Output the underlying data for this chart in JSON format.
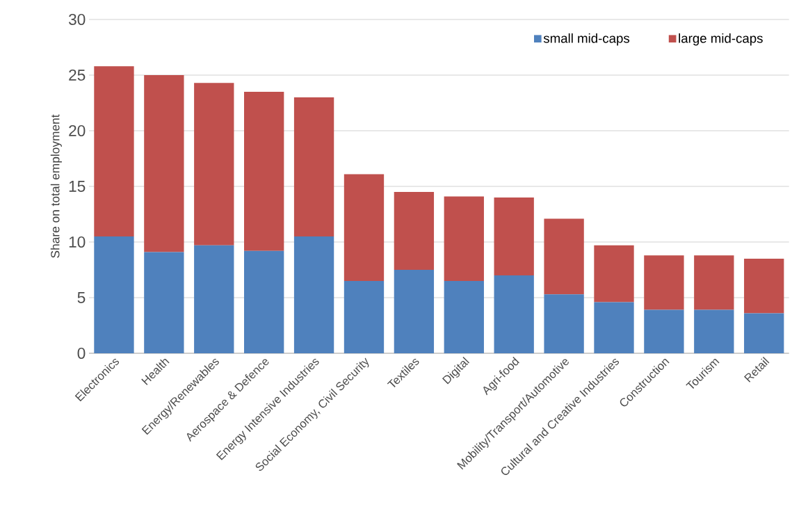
{
  "chart_data": {
    "type": "bar",
    "stacked": true,
    "ylabel": "Share on total employment",
    "categories": [
      "Electronics",
      "Health",
      "Energy/Renewables",
      "Aerospace & Defence",
      "Energy Intensive Industries",
      "Social Economy, Civil Security",
      "Textiles",
      "Digital",
      "Agri-food",
      "Mobility/Transport/Automotive",
      "Cultural and Creative Industries",
      "Construction",
      "Tourism",
      "Retail"
    ],
    "series": [
      {
        "name": "small mid-caps",
        "color": "#4f81bd",
        "values": [
          10.5,
          9.1,
          9.7,
          9.2,
          10.5,
          6.5,
          7.5,
          6.5,
          7.0,
          5.3,
          4.6,
          3.9,
          3.9,
          3.6
        ]
      },
      {
        "name": "large mid-caps",
        "color": "#c0504d",
        "values": [
          15.3,
          15.9,
          14.6,
          14.3,
          12.5,
          9.6,
          7.0,
          7.6,
          7.0,
          6.8,
          5.1,
          4.9,
          4.9,
          4.9
        ]
      }
    ],
    "ylim": [
      0,
      30
    ],
    "yticks": [
      0,
      5,
      10,
      15,
      20,
      25,
      30
    ],
    "grid": "y",
    "legend": "top right"
  }
}
